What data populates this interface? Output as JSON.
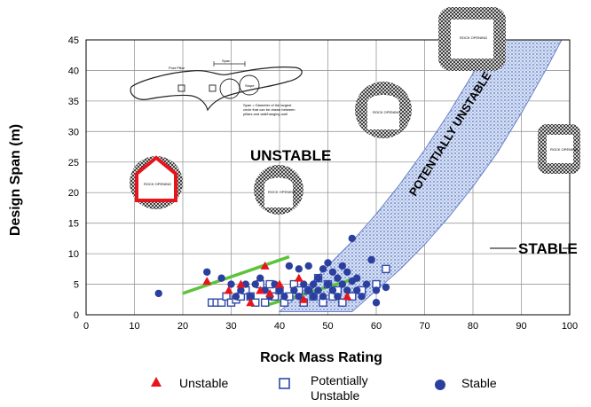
{
  "chart_data": {
    "type": "scatter",
    "xlabel": "Rock Mass Rating",
    "ylabel": "Design Span (m)",
    "xlim": [
      0,
      100
    ],
    "ylim": [
      0,
      45
    ],
    "x_ticks": [
      0,
      10,
      20,
      30,
      40,
      50,
      60,
      70,
      80,
      90,
      100
    ],
    "y_ticks": [
      0,
      5,
      10,
      15,
      20,
      25,
      30,
      35,
      40,
      45
    ],
    "grid": true,
    "regions": {
      "unstable": "UNSTABLE",
      "stable": "STABLE",
      "potentially_unstable": "POTENTIALLY UNSTABLE"
    },
    "legend": [
      {
        "key": "unstable",
        "label": "Unstable",
        "marker": "triangle",
        "color": "#e8141c"
      },
      {
        "key": "potentially",
        "label": "Potentially Unstable",
        "marker": "open-square",
        "color": "#2f4aa8"
      },
      {
        "key": "stable",
        "label": "Stable",
        "marker": "circle",
        "color": "#2a3f9e"
      }
    ],
    "band_upper": [
      [
        40,
        0.5
      ],
      [
        45,
        4
      ],
      [
        50,
        8
      ],
      [
        55,
        12
      ],
      [
        60,
        16.5
      ],
      [
        65,
        21.5
      ],
      [
        70,
        27
      ],
      [
        75,
        33
      ],
      [
        80,
        39.5
      ],
      [
        85,
        46
      ]
    ],
    "band_lower": [
      [
        55,
        0.5
      ],
      [
        60,
        4
      ],
      [
        65,
        7.5
      ],
      [
        70,
        11.5
      ],
      [
        75,
        16
      ],
      [
        80,
        21
      ],
      [
        85,
        26.5
      ],
      [
        90,
        33
      ],
      [
        95,
        40
      ],
      [
        99,
        46
      ]
    ],
    "green_lines": [
      {
        "x": [
          20,
          42
        ],
        "y": [
          3.5,
          9.5
        ]
      },
      {
        "x": [
          37,
          56
        ],
        "y": [
          1.5,
          6
        ]
      }
    ],
    "series": [
      {
        "name": "Unstable",
        "color": "#e8141c",
        "points": [
          [
            25,
            5.5
          ],
          [
            29.5,
            4
          ],
          [
            32,
            5
          ],
          [
            34,
            2
          ],
          [
            36,
            4
          ],
          [
            37,
            8
          ],
          [
            38,
            3.5
          ],
          [
            40,
            5
          ],
          [
            44,
            6
          ],
          [
            45,
            2.5
          ],
          [
            54,
            3
          ]
        ]
      },
      {
        "name": "Potentially Unstable",
        "color": "#2f4aa8",
        "points": [
          [
            26,
            2
          ],
          [
            27,
            2
          ],
          [
            28,
            2
          ],
          [
            29,
            3
          ],
          [
            30,
            2
          ],
          [
            31,
            2.5
          ],
          [
            32,
            3
          ],
          [
            33,
            4
          ],
          [
            34,
            3
          ],
          [
            35,
            2
          ],
          [
            36,
            5
          ],
          [
            37,
            2
          ],
          [
            38,
            5
          ],
          [
            39,
            3
          ],
          [
            40,
            4
          ],
          [
            41,
            2
          ],
          [
            42,
            3
          ],
          [
            43,
            5
          ],
          [
            44,
            4
          ],
          [
            45,
            2
          ],
          [
            46,
            4
          ],
          [
            47,
            3
          ],
          [
            48,
            6
          ],
          [
            49,
            2
          ],
          [
            50,
            5
          ],
          [
            51,
            3
          ],
          [
            52,
            4
          ],
          [
            53,
            2
          ],
          [
            55,
            3
          ],
          [
            57,
            4
          ],
          [
            60,
            5
          ],
          [
            62,
            7.5
          ]
        ]
      },
      {
        "name": "Stable",
        "color": "#2a3f9e",
        "points": [
          [
            15,
            3.5
          ],
          [
            25,
            7
          ],
          [
            28,
            6
          ],
          [
            30,
            5
          ],
          [
            31,
            3
          ],
          [
            32,
            4
          ],
          [
            33,
            5
          ],
          [
            34,
            3
          ],
          [
            35,
            5
          ],
          [
            36,
            6
          ],
          [
            37,
            4
          ],
          [
            38,
            3
          ],
          [
            39,
            5
          ],
          [
            40,
            4
          ],
          [
            41,
            3
          ],
          [
            42,
            8
          ],
          [
            43,
            4
          ],
          [
            44,
            3
          ],
          [
            44,
            7.5
          ],
          [
            45,
            5
          ],
          [
            46,
            4
          ],
          [
            46,
            8
          ],
          [
            47,
            3
          ],
          [
            47,
            5
          ],
          [
            48,
            4
          ],
          [
            48,
            6
          ],
          [
            49,
            3
          ],
          [
            49,
            7.5
          ],
          [
            50,
            5
          ],
          [
            50,
            8.5
          ],
          [
            51,
            4
          ],
          [
            51,
            7
          ],
          [
            52,
            6
          ],
          [
            52,
            3
          ],
          [
            53,
            5
          ],
          [
            53,
            8
          ],
          [
            54,
            4
          ],
          [
            54,
            7
          ],
          [
            55,
            5.5
          ],
          [
            55,
            12.5
          ],
          [
            56,
            4
          ],
          [
            56,
            6
          ],
          [
            57,
            3
          ],
          [
            58,
            5
          ],
          [
            59,
            9
          ],
          [
            60,
            4
          ],
          [
            60,
            2
          ],
          [
            62,
            4.5
          ]
        ]
      }
    ]
  },
  "schematic": {
    "text_pillar": "Post Pillar",
    "text_span": "Span",
    "text_stope": "Stope",
    "text_note_1": "Span = Diameter of the largest",
    "text_note_2": "circle that can be drawn between",
    "text_note_3": "pillars and wall/hanging wall"
  },
  "opening_label": "ROCK OPENING"
}
